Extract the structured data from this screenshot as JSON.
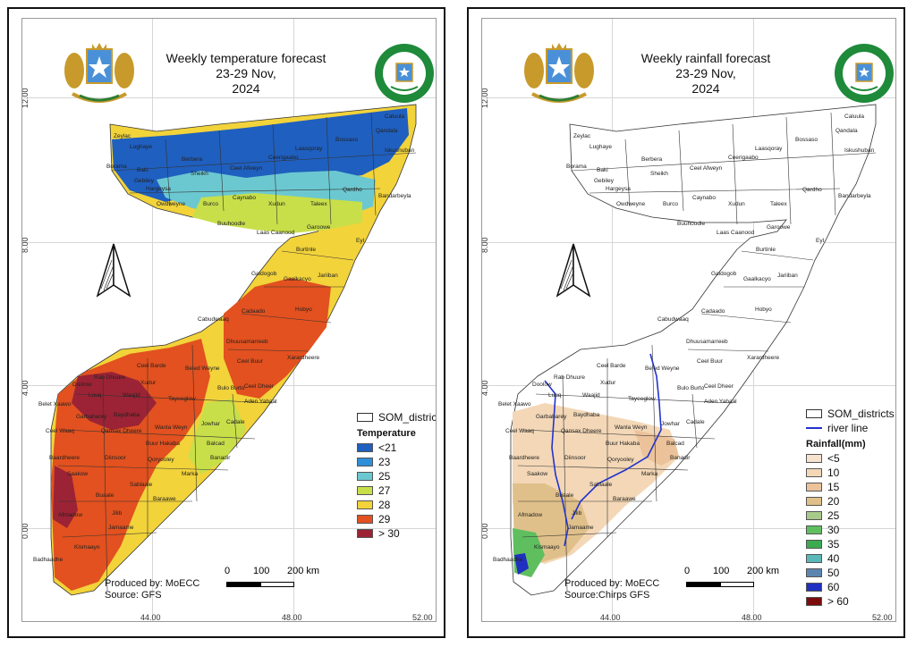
{
  "panels": [
    {
      "title": [
        "Weekly temperature forecast",
        "23-29 Nov,",
        "2024"
      ],
      "credit": [
        "Produced by: MoECC",
        "Source: GFS"
      ],
      "legend": {
        "layer_label": "SOM_districts",
        "heading": "Temperature",
        "items": [
          {
            "label": "<21",
            "color": "#1f5fbf"
          },
          {
            "label": "23",
            "color": "#2f8fd8"
          },
          {
            "label": "25",
            "color": "#6cc8d0"
          },
          {
            "label": "27",
            "color": "#c8df4a"
          },
          {
            "label": "28",
            "color": "#f2d33a"
          },
          {
            "label": "29",
            "color": "#e2511f"
          },
          {
            "label": "> 30",
            "color": "#9b2335"
          }
        ]
      }
    },
    {
      "title": [
        "Weekly rainfall forecast",
        "23-29 Nov,",
        "2024"
      ],
      "credit": [
        "Produced by: MoECC",
        "Source:Chirps GFS"
      ],
      "legend": {
        "layer_label": "SOM_districts",
        "river_label": "river line",
        "heading": "Rainfall(mm)",
        "items": [
          {
            "label": "<5",
            "color": "#f6e3cf"
          },
          {
            "label": "10",
            "color": "#f3d7b6"
          },
          {
            "label": "15",
            "color": "#ecc29a"
          },
          {
            "label": "20",
            "color": "#e0c08a"
          },
          {
            "label": "25",
            "color": "#a9c98b"
          },
          {
            "label": "30",
            "color": "#5fbf5f"
          },
          {
            "label": "35",
            "color": "#3caa4f"
          },
          {
            "label": "40",
            "color": "#5bb8b8"
          },
          {
            "label": "50",
            "color": "#5c86b0"
          },
          {
            "label": "60",
            "color": "#2030c0"
          },
          {
            "label": "> 60",
            "color": "#7a0c0c"
          }
        ]
      }
    }
  ],
  "axis": {
    "lat": [
      "12.00",
      "8.00",
      "4.00",
      "0.00"
    ],
    "lon": [
      "44.00",
      "48.00",
      "52.00"
    ]
  },
  "scale": {
    "ticks": [
      "0",
      "100",
      "200 km"
    ]
  },
  "districts": [
    "Caluula",
    "Qandala",
    "Iskushuban",
    "Bossaso",
    "Laasqoray",
    "Ceerigaabo",
    "Zeylac",
    "Lughaye",
    "Berbera",
    "Borama",
    "Baki",
    "Sheikh",
    "Ceel Afweyn",
    "Gebiley",
    "Hargeysa",
    "Owdweyne",
    "Burco",
    "Caynabo",
    "Xudun",
    "Taleex",
    "Qardho",
    "Bandarbeyla",
    "Buuhoodle",
    "Laas Caanood",
    "Garoowe",
    "Eyl",
    "Burtinle",
    "Galdogob",
    "Gaalkacyo",
    "Jariiban",
    "Cabudwaaq",
    "Cadaado",
    "Hobyo",
    "Dhuusamarreeb",
    "Xarardheere",
    "Beled Weyne",
    "Ceel Buur",
    "Rab Dhuure",
    "Ceel Barde",
    "Xudur",
    "Doolow",
    "Luuq",
    "Waajid",
    "Tayeeglow",
    "Bulo Burto",
    "Ceel Dheer",
    "Belet Xaawo",
    "Garbaharey",
    "Aden Yabaal",
    "Ceel Waaq",
    "Qansax Dheere",
    "Baydhaba",
    "Wanla Weyn",
    "Jowhar",
    "Cadale",
    "Buur Hakaba",
    "Balcad",
    "Baardheere",
    "Diinsoor",
    "Qoryooley",
    "Banadir",
    "Saakow",
    "Marka",
    "Sablaale",
    "Buaale",
    "Baraawe",
    "Jilib",
    "Afmadow",
    "Jamaame",
    "Kismaayo",
    "Badhaadhe"
  ]
}
